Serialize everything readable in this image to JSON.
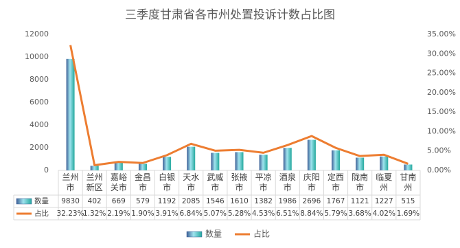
{
  "chart_data": {
    "type": "bar",
    "title": "三季度甘肃省各市州处置投诉计数占比图",
    "categories": [
      "兰州市",
      "兰州新区",
      "嘉峪关市",
      "金昌市",
      "白银市",
      "天水市",
      "武威市",
      "张掖市",
      "平凉市",
      "酒泉市",
      "庆阳市",
      "定西市",
      "陇南市",
      "临夏州",
      "甘南州"
    ],
    "series": [
      {
        "name": "数量",
        "type": "bar",
        "color": "#4fc3c8",
        "values": [
          9830,
          402,
          669,
          579,
          1192,
          2085,
          1546,
          1610,
          1382,
          1986,
          2696,
          1767,
          1121,
          1227,
          515
        ]
      },
      {
        "name": "占比",
        "type": "line",
        "axis": "y2",
        "color": "#ed7d31",
        "values": [
          32.23,
          1.32,
          2.19,
          1.9,
          3.91,
          6.84,
          5.07,
          5.28,
          4.53,
          6.51,
          8.84,
          5.79,
          3.68,
          4.02,
          1.69
        ],
        "value_labels": [
          "32.23%",
          "1.32%",
          "2.19%",
          "1.90%",
          "3.91%",
          "6.84%",
          "5.07%",
          "5.28%",
          "4.53%",
          "6.51%",
          "8.84%",
          "5.79%",
          "3.68%",
          "4.02%",
          "1.69%"
        ]
      }
    ],
    "ylim": [
      0,
      12000
    ],
    "yticks": [
      0,
      2000,
      4000,
      6000,
      8000,
      10000,
      12000
    ],
    "y2lim": [
      0,
      35
    ],
    "y2ticks": [
      {
        "value": 0,
        "label": "0.00%"
      },
      {
        "value": 5,
        "label": "5.00%"
      },
      {
        "value": 10,
        "label": "10.00%"
      },
      {
        "value": 15,
        "label": "15.00%"
      },
      {
        "value": 20,
        "label": "20.00%"
      },
      {
        "value": 25,
        "label": "25.00%"
      },
      {
        "value": 30,
        "label": "30.00%"
      },
      {
        "value": 35,
        "label": "35.00%"
      }
    ],
    "grid": false,
    "legend": "bottom"
  }
}
